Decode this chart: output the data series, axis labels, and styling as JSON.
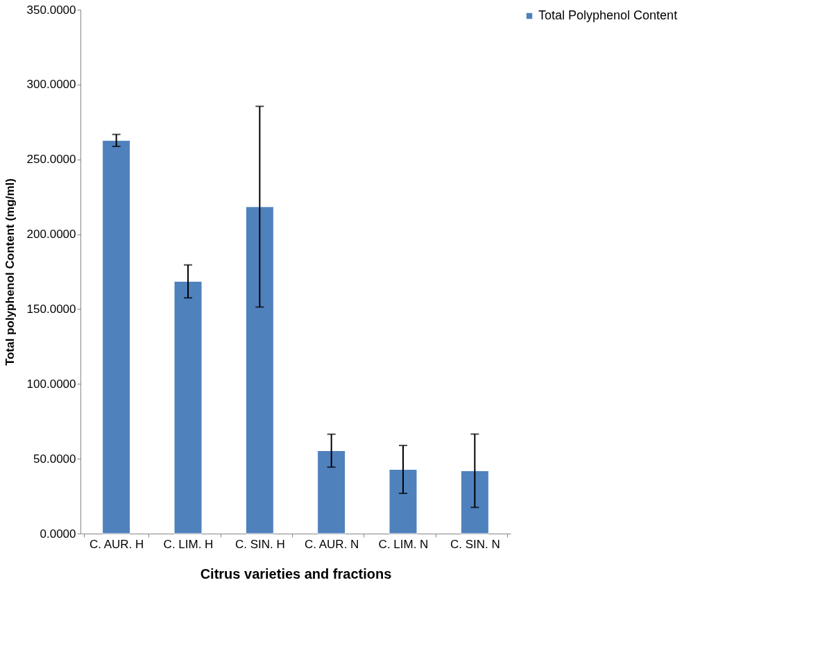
{
  "chart_data": {
    "type": "bar",
    "xlabel": "Citrus varieties  and  fractions",
    "ylabel": "Total polyphenol Content (mg/ml)",
    "categories": [
      "C. AUR. H",
      "C. LIM. H",
      "C. SIN. H",
      "C. AUR. N",
      "C. LIM. N",
      "C. SIN. N"
    ],
    "series": [
      {
        "name": "Total Polyphenol Content",
        "color": "#4f81bd",
        "values": [
          262.7,
          168.5,
          218.4,
          55.4,
          42.9,
          42.0
        ],
        "errors": [
          4,
          11,
          67,
          11,
          16,
          24.5
        ]
      }
    ],
    "ylim": [
      0,
      350
    ],
    "yticks": [
      {
        "value": 0,
        "label": "0.0000"
      },
      {
        "value": 50,
        "label": "50.0000"
      },
      {
        "value": 100,
        "label": "100.0000"
      },
      {
        "value": 150,
        "label": "150.0000"
      },
      {
        "value": 200,
        "label": "200.0000"
      },
      {
        "value": 250,
        "label": "250.0000"
      },
      {
        "value": 300,
        "label": "300.0000"
      },
      {
        "value": 350,
        "label": "350.0000"
      }
    ],
    "grid": false,
    "legend": "right"
  }
}
